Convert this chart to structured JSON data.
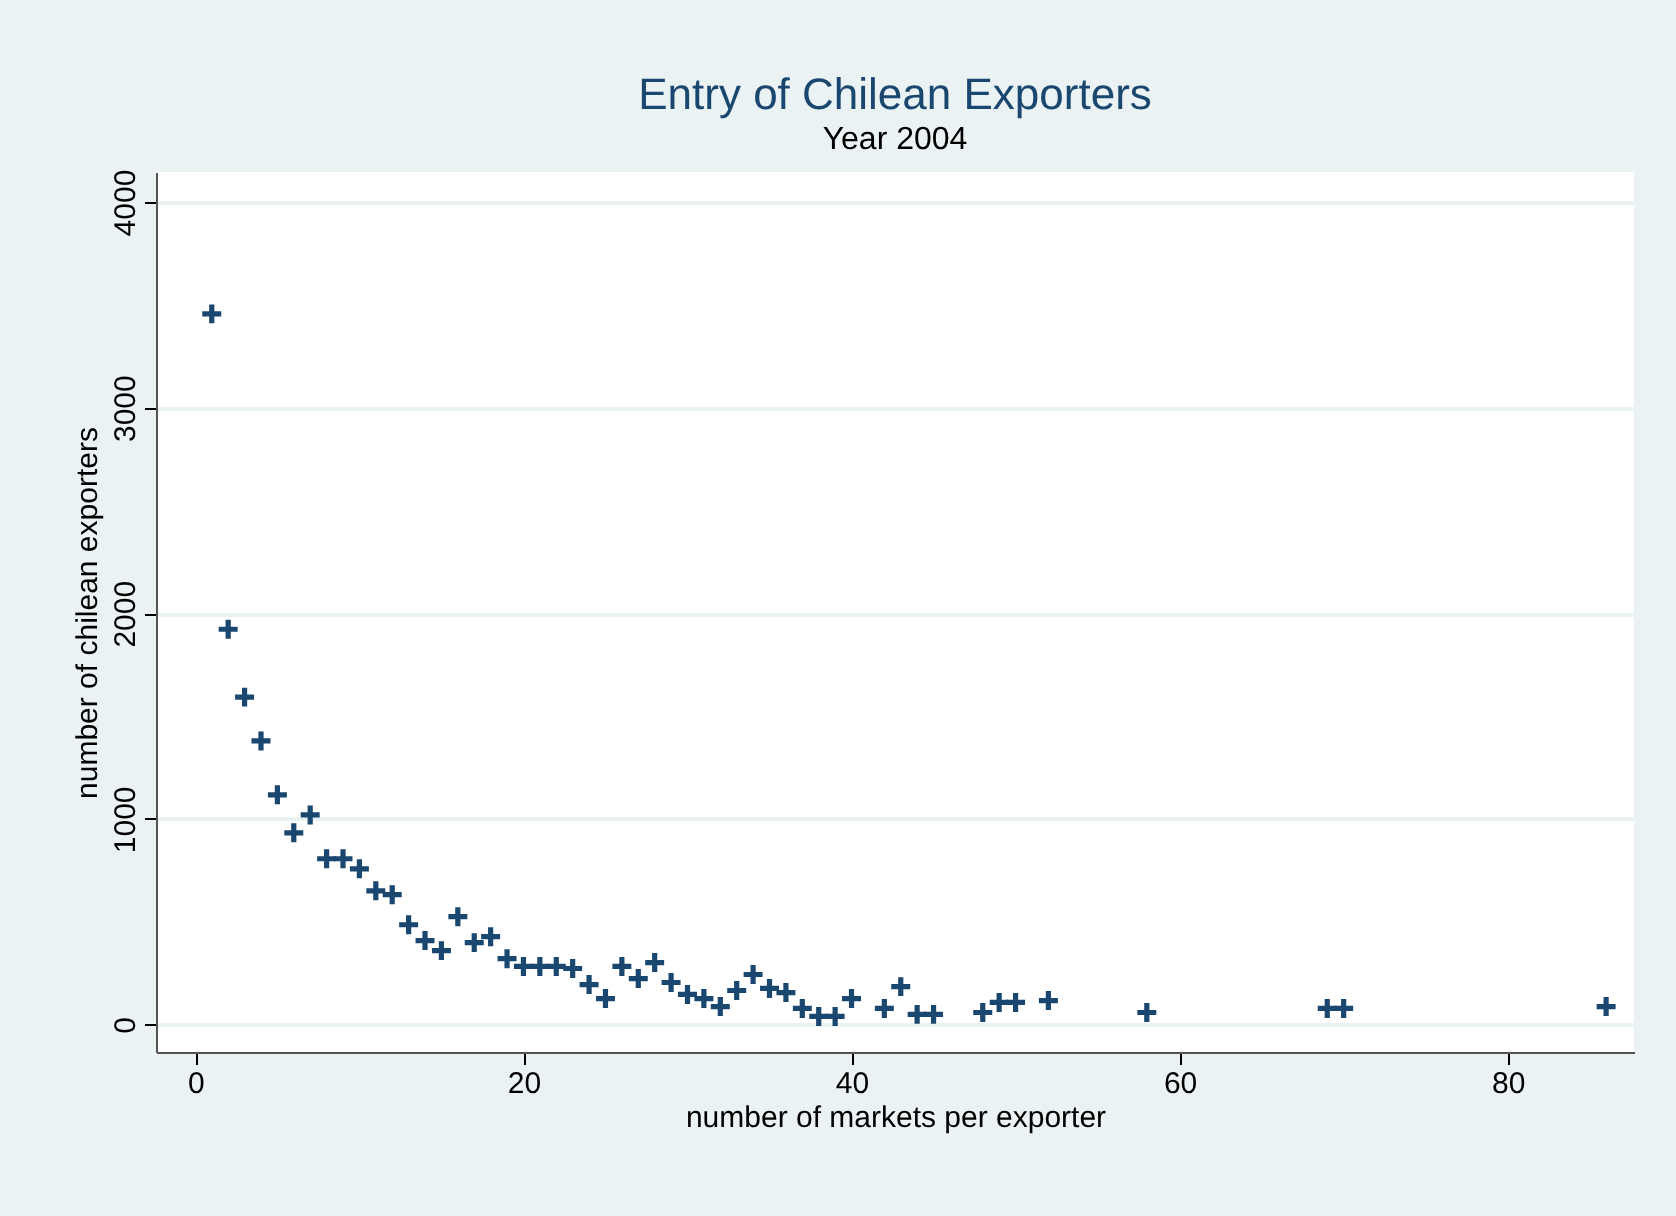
{
  "chart_data": {
    "type": "scatter",
    "title": "Entry of Chilean Exporters",
    "subtitle": "Year 2004",
    "xlabel": "number of markets per exporter",
    "ylabel": "number of chilean exporters",
    "x": [
      1,
      2,
      3,
      4,
      5,
      6,
      7,
      8,
      9,
      10,
      11,
      12,
      13,
      14,
      15,
      16,
      17,
      18,
      19,
      20,
      21,
      22,
      23,
      24,
      25,
      26,
      27,
      28,
      29,
      30,
      31,
      32,
      33,
      34,
      35,
      36,
      37,
      38,
      39,
      40,
      42,
      43,
      44,
      45,
      48,
      49,
      50,
      52,
      58,
      69,
      70,
      86
    ],
    "series": [
      {
        "color": "#1a476f",
        "values": [
          3456,
          1922,
          1592,
          1379,
          1117,
          932,
          1019,
          806,
          806,
          757,
          650,
          631,
          485,
          408,
          359,
          524,
          398,
          427,
          320,
          282,
          282,
          282,
          272,
          194,
          126,
          282,
          223,
          301,
          204,
          146,
          126,
          87,
          165,
          243,
          175,
          155,
          78,
          39,
          39,
          126,
          78,
          184,
          49,
          49,
          58,
          107,
          107,
          116,
          58,
          78,
          78,
          87
        ]
      }
    ],
    "xlim": [
      -2.4,
      87.7
    ],
    "ylim": [
      -134,
      4146
    ],
    "xticks": [
      0,
      20,
      40,
      60,
      80
    ],
    "yticks": [
      0,
      1000,
      2000,
      3000,
      4000
    ],
    "grid": "y",
    "marker": "cross",
    "legend": false
  }
}
